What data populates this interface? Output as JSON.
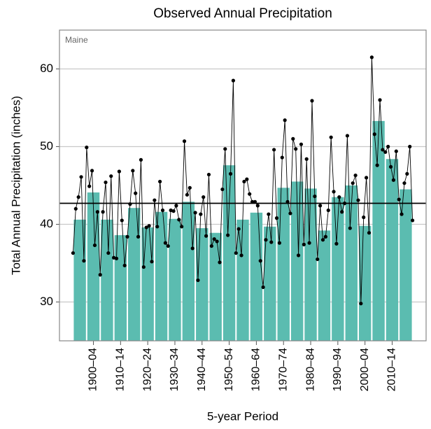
{
  "chart_data": {
    "type": "bar",
    "title": "Observed Annual Precipitation",
    "annotation": "Maine",
    "x_label": "5-year Period",
    "y_label": "Total Annual Precipitation (inches)",
    "categories": [
      null,
      "1900–04",
      null,
      "1910–14",
      null,
      "1920–24",
      null,
      "1930–34",
      null,
      "1940–44",
      null,
      "1950–54",
      null,
      "1960–64",
      null,
      "1970–74",
      null,
      "1980–84",
      null,
      "1990–94",
      null,
      "2000–04",
      null,
      "2010–14",
      null
    ],
    "values": [
      40.6,
      44.1,
      40.6,
      38.6,
      42.1,
      39.6,
      41.6,
      40.7,
      42.9,
      39.5,
      38.9,
      47.6,
      40.6,
      41.5,
      39.7,
      44.7,
      45.5,
      44.6,
      39.2,
      43.5,
      45.0,
      39.8,
      53.3,
      48.4,
      44.5
    ],
    "color": "#5bbcb0",
    "x": [
      1895,
      1896,
      1897,
      1898,
      1899,
      1900,
      1901,
      1902,
      1903,
      1904,
      1905,
      1906,
      1907,
      1908,
      1909,
      1910,
      1911,
      1912,
      1913,
      1914,
      1915,
      1916,
      1917,
      1918,
      1919,
      1920,
      1921,
      1922,
      1923,
      1924,
      1925,
      1926,
      1927,
      1928,
      1929,
      1930,
      1931,
      1932,
      1933,
      1934,
      1935,
      1936,
      1937,
      1938,
      1939,
      1940,
      1941,
      1942,
      1943,
      1944,
      1945,
      1946,
      1947,
      1948,
      1949,
      1950,
      1951,
      1952,
      1953,
      1954,
      1955,
      1956,
      1957,
      1958,
      1959,
      1960,
      1961,
      1962,
      1963,
      1964,
      1965,
      1966,
      1967,
      1968,
      1969,
      1970,
      1971,
      1972,
      1973,
      1974,
      1975,
      1976,
      1977,
      1978,
      1979,
      1980,
      1981,
      1982,
      1983,
      1984,
      1985,
      1986,
      1987,
      1988,
      1989,
      1990,
      1991,
      1992,
      1993,
      1994,
      1995,
      1996,
      1997,
      1998,
      1999,
      2000,
      2001,
      2002,
      2003,
      2004,
      2005,
      2006,
      2007,
      2008,
      2009,
      2010,
      2011,
      2012,
      2013,
      2014,
      2015,
      2016,
      2017,
      2018,
      2019,
      2020
    ],
    "annual_values": [
      36.3,
      42.0,
      43.5,
      46.1,
      35.3,
      49.9,
      44.9,
      46.9,
      37.3,
      41.6,
      33.5,
      41.6,
      45.4,
      36.3,
      46.2,
      35.7,
      35.6,
      46.8,
      40.5,
      34.7,
      38.4,
      42.6,
      46.9,
      44.0,
      38.4,
      48.3,
      34.5,
      39.6,
      39.8,
      35.2,
      43.1,
      39.7,
      45.5,
      41.8,
      37.6,
      37.2,
      41.8,
      41.7,
      42.4,
      40.6,
      39.7,
      50.7,
      43.8,
      44.7,
      36.9,
      41.5,
      32.8,
      41.3,
      43.5,
      38.5,
      46.4,
      37.2,
      38.1,
      37.8,
      35.1,
      44.5,
      49.7,
      38.6,
      46.5,
      58.5,
      36.3,
      39.4,
      36.0,
      45.5,
      45.8,
      43.9,
      42.9,
      42.9,
      42.4,
      35.3,
      31.9,
      38.0,
      41.3,
      37.7,
      49.6,
      40.8,
      37.6,
      48.6,
      53.4,
      42.9,
      41.4,
      51.0,
      49.7,
      36.0,
      50.3,
      37.4,
      48.4,
      37.6,
      55.9,
      43.6,
      35.5,
      42.4,
      38.0,
      38.4,
      41.8,
      51.2,
      44.2,
      37.5,
      43.5,
      41.6,
      42.7,
      51.4,
      39.5,
      45.3,
      46.3,
      43.1,
      29.8,
      40.9,
      46.0,
      38.9,
      61.5,
      51.6,
      47.6,
      56.0,
      49.6,
      49.3,
      50.0,
      47.4,
      45.7,
      49.4,
      43.2,
      41.3,
      45.3,
      46.5,
      50.0,
      40.5
    ],
    "line_color": "#000000",
    "reference_line": 42.7,
    "xlim": [
      1890,
      2025
    ],
    "ylim": [
      25,
      65
    ],
    "yticks": [
      30,
      40,
      50,
      60
    ],
    "grid": true
  }
}
